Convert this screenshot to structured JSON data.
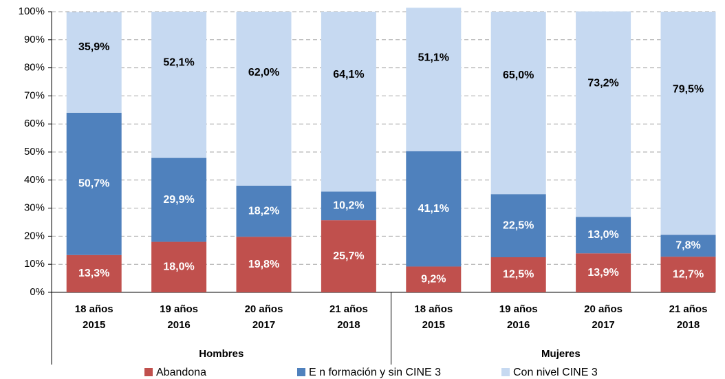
{
  "chart_data": {
    "type": "stacked-bar",
    "groups": [
      {
        "name": "Hombres",
        "categories": [
          [
            "18 años",
            "2015"
          ],
          [
            "19 años",
            "2016"
          ],
          [
            "20 años",
            "2017"
          ],
          [
            "21 años",
            "2018"
          ]
        ]
      },
      {
        "name": "Mujeres",
        "categories": [
          [
            "18 años",
            "2015"
          ],
          [
            "19 años",
            "2016"
          ],
          [
            "20 años",
            "2017"
          ],
          [
            "21 años",
            "2018"
          ]
        ]
      }
    ],
    "series": [
      {
        "name": "Abandona",
        "color": "#c0504d",
        "label_color": "#ffffff",
        "values": [
          13.3,
          18.0,
          19.8,
          25.7,
          9.2,
          12.5,
          13.9,
          12.7
        ],
        "value_labels": [
          "13,3%",
          "18,0%",
          "19,8%",
          "25,7%",
          "9,2%",
          "12,5%",
          "13,9%",
          "12,7%"
        ]
      },
      {
        "name": "E n formación y sin CINE 3",
        "color": "#4f81bd",
        "label_color": "#ffffff",
        "values": [
          50.7,
          29.9,
          18.2,
          10.2,
          41.1,
          22.5,
          13.0,
          7.8
        ],
        "value_labels": [
          "50,7%",
          "29,9%",
          "18,2%",
          "10,2%",
          "41,1%",
          "22,5%",
          "13,0%",
          "7,8%"
        ]
      },
      {
        "name": "Con nivel CINE 3",
        "color": "#c6d9f1",
        "label_color": "#000000",
        "values": [
          35.9,
          52.1,
          62.0,
          64.1,
          51.1,
          65.0,
          73.2,
          79.5
        ],
        "value_labels": [
          "35,9%",
          "52,1%",
          "62,0%",
          "64,1%",
          "51,1%",
          "65,0%",
          "73,2%",
          "79,5%"
        ]
      }
    ],
    "ylim": [
      0,
      100
    ],
    "yticks": [
      {
        "value": 0,
        "label": "0%"
      },
      {
        "value": 10,
        "label": "10%"
      },
      {
        "value": 20,
        "label": "20%"
      },
      {
        "value": 30,
        "label": "30%"
      },
      {
        "value": 40,
        "label": "40%"
      },
      {
        "value": 50,
        "label": "50%"
      },
      {
        "value": 60,
        "label": "60%"
      },
      {
        "value": 70,
        "label": "70%"
      },
      {
        "value": 80,
        "label": "80%"
      },
      {
        "value": 90,
        "label": "90%"
      },
      {
        "value": 100,
        "label": "100%"
      }
    ],
    "grid": true,
    "legend": "bottom"
  }
}
